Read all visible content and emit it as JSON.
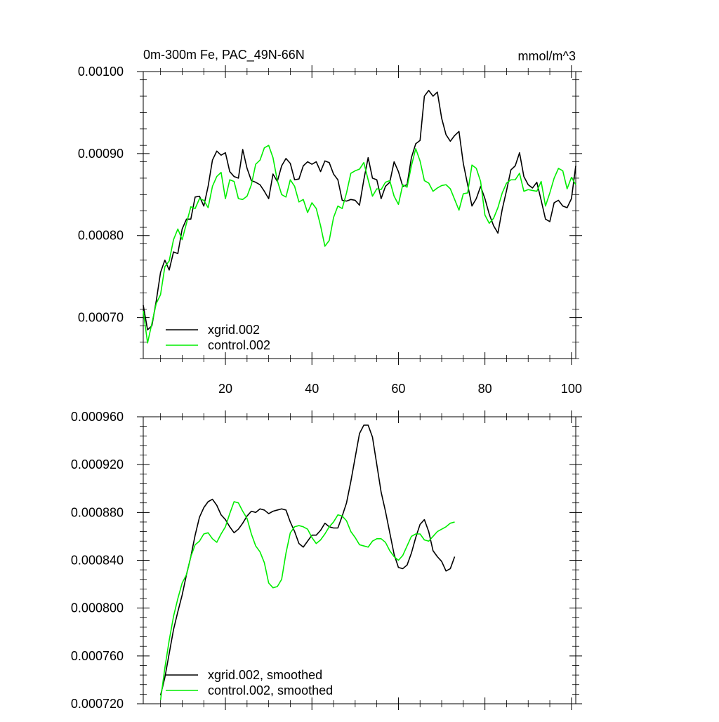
{
  "chart_data": [
    {
      "type": "line",
      "title": "0m-300m Fe, PAC_49N-66N",
      "units": "mmol/m^3",
      "xlim": [
        1,
        101
      ],
      "ylim": [
        0.00065,
        0.001
      ],
      "xticks": [
        20,
        40,
        60,
        80,
        100
      ],
      "xtick_labels": [
        "20",
        "40",
        "60",
        "80",
        "100"
      ],
      "yticks": [
        0.0007,
        0.0008,
        0.0009,
        0.001
      ],
      "ytick_labels": [
        "0.00070",
        "0.00080",
        "0.00090",
        "0.00100"
      ],
      "x_start": 1,
      "legend_position": "bottom-left",
      "series": [
        {
          "name": "xgrid.002",
          "color": "#000000",
          "values": [
            0.000715,
            0.000685,
            0.00069,
            0.00072,
            0.000755,
            0.00077,
            0.000758,
            0.00078,
            0.000778,
            0.000808,
            0.00082,
            0.00082,
            0.000847,
            0.000848,
            0.000836,
            0.00086,
            0.000892,
            0.000903,
            0.000898,
            0.000901,
            0.000878,
            0.000872,
            0.00087,
            0.000905,
            0.000882,
            0.000867,
            0.000865,
            0.000862,
            0.000854,
            0.000845,
            0.000875,
            0.000866,
            0.000885,
            0.000894,
            0.000888,
            0.000868,
            0.000869,
            0.000885,
            0.00089,
            0.000887,
            0.00089,
            0.000878,
            0.000891,
            0.000889,
            0.000875,
            0.000868,
            0.000843,
            0.000842,
            0.000844,
            0.000843,
            0.000837,
            0.000868,
            0.000895,
            0.00087,
            0.000868,
            0.000845,
            0.00086,
            0.000865,
            0.00089,
            0.000878,
            0.00086,
            0.000862,
            0.000895,
            0.000912,
            0.000916,
            0.00097,
            0.000977,
            0.00097,
            0.000975,
            0.000943,
            0.000923,
            0.000915,
            0.000922,
            0.000927,
            0.000888,
            0.000862,
            0.000836,
            0.000845,
            0.00086,
            0.000845,
            0.000826,
            0.000812,
            0.000803,
            0.000832,
            0.000855,
            0.00088,
            0.000885,
            0.000901,
            0.000872,
            0.000862,
            0.000858,
            0.000865,
            0.000843,
            0.00082,
            0.000817,
            0.00084,
            0.000843,
            0.000836,
            0.000834,
            0.000845,
            0.000885
          ]
        },
        {
          "name": "control.002",
          "color": "#00ee00",
          "values": [
            0.000708,
            0.000669,
            0.000693,
            0.000717,
            0.000728,
            0.000762,
            0.000769,
            0.000795,
            0.000808,
            0.000795,
            0.000815,
            0.000835,
            0.000833,
            0.000845,
            0.000843,
            0.000834,
            0.00086,
            0.000872,
            0.000877,
            0.000845,
            0.000868,
            0.000866,
            0.000845,
            0.000844,
            0.000848,
            0.000862,
            0.000887,
            0.000892,
            0.000907,
            0.00091,
            0.000895,
            0.000867,
            0.00085,
            0.000847,
            0.000868,
            0.00086,
            0.000841,
            0.000844,
            0.000828,
            0.00084,
            0.000833,
            0.000812,
            0.000787,
            0.000794,
            0.000822,
            0.000836,
            0.000833,
            0.000852,
            0.000876,
            0.000879,
            0.000881,
            0.000889,
            0.000868,
            0.000848,
            0.000857,
            0.000856,
            0.000865,
            0.000867,
            0.000848,
            0.000838,
            0.000862,
            0.000859,
            0.000885,
            0.000906,
            0.000891,
            0.000867,
            0.000864,
            0.000854,
            0.000858,
            0.000861,
            0.000862,
            0.000857,
            0.000844,
            0.000831,
            0.000851,
            0.000852,
            0.000886,
            0.000882,
            0.000866,
            0.000825,
            0.000815,
            0.000821,
            0.000834,
            0.000852,
            0.000864,
            0.000868,
            0.000868,
            0.000876,
            0.000854,
            0.000856,
            0.000855,
            0.000854,
            0.000866,
            0.000836,
            0.000852,
            0.00087,
            0.000882,
            0.000879,
            0.000857,
            0.000871,
            0.000862
          ]
        }
      ]
    },
    {
      "type": "line",
      "title": "",
      "xlim": [
        1,
        101
      ],
      "ylim": [
        0.00072,
        0.00096
      ],
      "xticks": [
        20,
        40,
        60,
        80,
        100
      ],
      "yticks": [
        0.00072,
        0.00076,
        0.0008,
        0.00084,
        0.00088,
        0.00092,
        0.00096
      ],
      "ytick_labels": [
        "0.000720",
        "0.000760",
        "0.000800",
        "0.000840",
        "0.000880",
        "0.000920",
        "0.000960"
      ],
      "x_start": 5,
      "legend_position": "bottom-left",
      "series": [
        {
          "name": "xgrid.002, smoothed",
          "color": "#000000",
          "values": [
            0.000727,
            0.000742,
            0.000762,
            0.000782,
            0.000797,
            0.000811,
            0.000828,
            0.000843,
            0.000861,
            0.000876,
            0.000884,
            0.000889,
            0.000891,
            0.000886,
            0.000878,
            0.000874,
            0.000868,
            0.000863,
            0.000866,
            0.000871,
            0.000877,
            0.000881,
            0.00088,
            0.000883,
            0.000882,
            0.000879,
            0.000881,
            0.000882,
            0.000883,
            0.000882,
            0.000872,
            0.000864,
            0.000854,
            0.000851,
            0.000856,
            0.000861,
            0.000861,
            0.000865,
            0.000871,
            0.000868,
            0.000867,
            0.000867,
            0.000877,
            0.000888,
            0.000906,
            0.000926,
            0.000946,
            0.000953,
            0.000953,
            0.000943,
            0.00092,
            0.000897,
            0.000881,
            0.000863,
            0.000845,
            0.000834,
            0.000833,
            0.000836,
            0.000846,
            0.000859,
            0.00087,
            0.000874,
            0.000864,
            0.000848,
            0.000843,
            0.000839,
            0.000831,
            0.000833,
            0.000843
          ]
        },
        {
          "name": "control.002, smoothed",
          "color": "#00ee00",
          "values": [
            0.000723,
            0.00075,
            0.000773,
            0.000793,
            0.000808,
            0.000821,
            0.000828,
            0.000843,
            0.000853,
            0.000856,
            0.000862,
            0.000863,
            0.000858,
            0.000855,
            0.000862,
            0.000868,
            0.000879,
            0.000889,
            0.000888,
            0.000881,
            0.000875,
            0.000862,
            0.000852,
            0.000847,
            0.000838,
            0.000821,
            0.000817,
            0.000818,
            0.000824,
            0.000846,
            0.000863,
            0.000868,
            0.000869,
            0.000868,
            0.000866,
            0.000859,
            0.000854,
            0.000857,
            0.000862,
            0.000868,
            0.000872,
            0.000878,
            0.000877,
            0.000873,
            0.000864,
            0.000859,
            0.000853,
            0.000852,
            0.000851,
            0.000856,
            0.000858,
            0.000858,
            0.000855,
            0.000848,
            0.000843,
            0.00084,
            0.000844,
            0.000852,
            0.00086,
            0.000862,
            0.000862,
            0.000857,
            0.000856,
            0.00086,
            0.000864,
            0.000866,
            0.000868,
            0.000871,
            0.000872
          ]
        }
      ]
    }
  ]
}
